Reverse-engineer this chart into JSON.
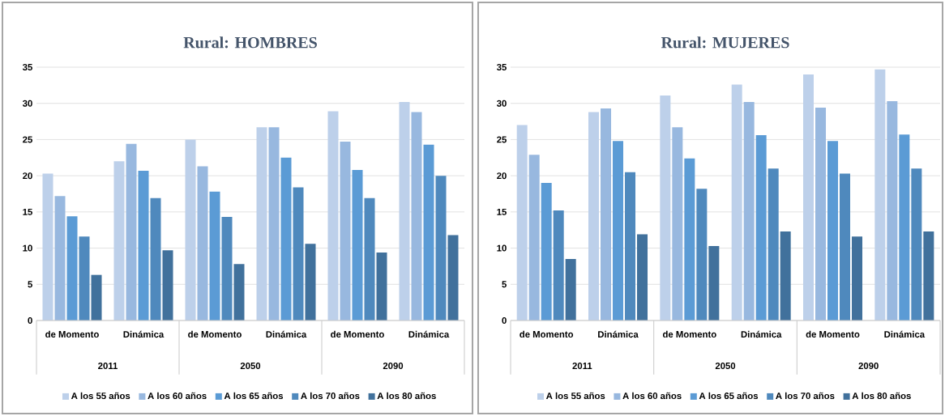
{
  "chart_data": [
    {
      "type": "bar",
      "title": "Rural: HOMBRES",
      "categories": [
        "de Momento",
        "Dinámica",
        "de Momento",
        "Dinámica",
        "de Momento",
        "Dinámica"
      ],
      "annotations": [
        "2011",
        "2050",
        "2090"
      ],
      "ylim": [
        0,
        35
      ],
      "yticks": [
        0,
        5,
        10,
        15,
        20,
        25,
        30,
        35
      ],
      "grid": "y",
      "legend": "bottom",
      "series": [
        {
          "name": "A los 55 años",
          "color": "#bdd0ea",
          "values": [
            20.3,
            22.0,
            25.0,
            26.7,
            28.9,
            30.2
          ]
        },
        {
          "name": "A los 60 años",
          "color": "#98b8df",
          "values": [
            17.2,
            24.4,
            21.3,
            26.7,
            24.7,
            28.8
          ]
        },
        {
          "name": "A los 65 años",
          "color": "#5b9bd5",
          "values": [
            14.4,
            20.7,
            17.8,
            22.5,
            20.8,
            24.3
          ]
        },
        {
          "name": "A los 70 años",
          "color": "#4f89bd",
          "values": [
            11.6,
            16.9,
            14.3,
            18.4,
            16.9,
            20.0
          ]
        },
        {
          "name": "A los 80 años",
          "color": "#41719c",
          "values": [
            6.3,
            9.7,
            7.8,
            10.6,
            9.4,
            11.8
          ]
        }
      ]
    },
    {
      "type": "bar",
      "title": "Rural: MUJERES",
      "categories": [
        "de Momento",
        "Dinámica",
        "de Momento",
        "Dinámica",
        "de Momento",
        "Dinámica"
      ],
      "annotations": [
        "2011",
        "2050",
        "2090"
      ],
      "ylim": [
        0,
        35
      ],
      "yticks": [
        0,
        5,
        10,
        15,
        20,
        25,
        30,
        35
      ],
      "grid": "y",
      "legend": "bottom",
      "series": [
        {
          "name": "A los 55 años",
          "color": "#bdd0ea",
          "values": [
            27.0,
            28.8,
            31.1,
            32.6,
            34.0,
            34.7
          ]
        },
        {
          "name": "A los 60 años",
          "color": "#98b8df",
          "values": [
            22.9,
            29.3,
            26.7,
            30.2,
            29.4,
            30.3
          ]
        },
        {
          "name": "A los 65 años",
          "color": "#5b9bd5",
          "values": [
            19.0,
            24.8,
            22.4,
            25.6,
            24.8,
            25.7
          ]
        },
        {
          "name": "A los 70 años",
          "color": "#4f89bd",
          "values": [
            15.2,
            20.5,
            18.2,
            21.0,
            20.3,
            21.0
          ]
        },
        {
          "name": "A los 80 años",
          "color": "#41719c",
          "values": [
            8.5,
            11.9,
            10.3,
            12.3,
            11.6,
            12.3
          ]
        }
      ]
    }
  ]
}
